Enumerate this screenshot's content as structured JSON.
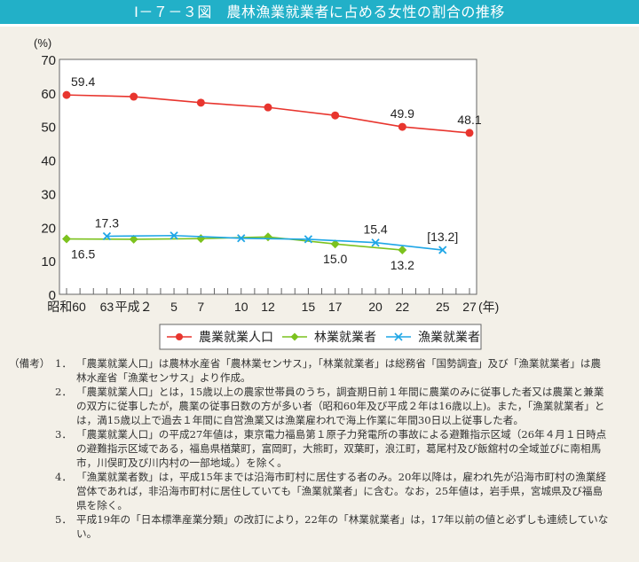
{
  "title": "Ⅰ－７－３図　農林漁業就業者に占める女性の割合の推移",
  "chart_data": {
    "type": "line",
    "title": "Ⅰ－７－３図　農林漁業就業者に占める女性の割合の推移",
    "ylabel": "(%)",
    "xlabel": "(年)",
    "ylim": [
      0,
      70
    ],
    "yticks": [
      0,
      10,
      20,
      30,
      40,
      50,
      60,
      70
    ],
    "xlim": [
      1985,
      2015
    ],
    "xticks": [
      {
        "year": 1985,
        "label": "昭和60"
      },
      {
        "year": 1988,
        "label": "63"
      },
      {
        "year": 1990,
        "label": "平成２"
      },
      {
        "year": 1993,
        "label": "5"
      },
      {
        "year": 1995,
        "label": "7"
      },
      {
        "year": 1998,
        "label": "10"
      },
      {
        "year": 2000,
        "label": "12"
      },
      {
        "year": 2003,
        "label": "15"
      },
      {
        "year": 2005,
        "label": "17"
      },
      {
        "year": 2008,
        "label": "20"
      },
      {
        "year": 2010,
        "label": "22"
      },
      {
        "year": 2013,
        "label": "25"
      },
      {
        "year": 2015,
        "label": "27"
      }
    ],
    "grid": false,
    "legend_placement": "bottom",
    "series": [
      {
        "name": "農業就業人口",
        "color": "#e8352e",
        "marker": "circle",
        "x": [
          1985,
          1990,
          1995,
          2000,
          2005,
          2010,
          2015
        ],
        "values": [
          59.4,
          58.9,
          57.1,
          55.7,
          53.3,
          49.9,
          48.1
        ]
      },
      {
        "name": "林業就業者",
        "color": "#7cc21e",
        "marker": "diamond",
        "x": [
          1985,
          1990,
          1995,
          2000,
          2005,
          2010
        ],
        "values": [
          16.5,
          16.4,
          16.6,
          17.1,
          15.0,
          13.2
        ]
      },
      {
        "name": "漁業就業者",
        "color": "#1ea6e6",
        "marker": "x",
        "x": [
          1988,
          1993,
          1998,
          2003,
          2008,
          2013
        ],
        "values": [
          17.3,
          17.5,
          16.7,
          16.4,
          15.4,
          13.2
        ]
      }
    ],
    "data_labels": [
      {
        "series": 0,
        "x": 1985,
        "text": "59.4"
      },
      {
        "series": 0,
        "x": 2010,
        "text": "49.9"
      },
      {
        "series": 0,
        "x": 2015,
        "text": "48.1"
      },
      {
        "series": 1,
        "x": 1985,
        "text": "16.5"
      },
      {
        "series": 1,
        "x": 2005,
        "text": "15.0"
      },
      {
        "series": 1,
        "x": 2010,
        "text": "13.2"
      },
      {
        "series": 2,
        "x": 1988,
        "text": "17.3"
      },
      {
        "series": 2,
        "x": 2008,
        "text": "15.4"
      },
      {
        "series": 2,
        "x": 2013,
        "text": "[13.2]"
      }
    ]
  },
  "notes": {
    "label": "（備考）",
    "items": [
      {
        "num": "1．",
        "lines": [
          "「農業就業人口」は農林水産省「農林業センサス」，「林業就業者」は総務省「国勢調査」及び「漁業就業者」は農",
          "林水産省「漁業センサス」より作成。"
        ]
      },
      {
        "num": "2．",
        "lines": [
          "「農業就業人口」とは，15歳以上の農家世帯員のうち，調査期日前１年間に農業のみに従事した者又は農業と兼業",
          "の双方に従事したが，農業の従事日数の方が多い者（昭和60年及び平成２年は16歳以上)。また，「漁業就業者」と",
          "は，満15歳以上で過去１年間に自営漁業又は漁業雇われで海上作業に年間30日以上従事した者。"
        ]
      },
      {
        "num": "3．",
        "lines": [
          "「農業就業人口」の平成27年値は，東京電力福島第１原子力発電所の事故による避難指示区域（26年４月１日時点",
          "の避難指示区域である，福島県楢葉町，富岡町，大熊町，双葉町，浪江町，葛尾村及び飯舘村の全域並びに南相馬",
          "市，川俣町及び川内村の一部地域。）を除く。"
        ]
      },
      {
        "num": "4．",
        "lines": [
          "「漁業就業者数」は，平成15年までは沿海市町村に居住する者のみ。20年以降は，雇われ先が沿海市町村の漁業経",
          "営体であれば，非沿海市町村に居住していても「漁業就業者」に含む。なお，25年値は，岩手県，宮城県及び福島",
          "県を除く。"
        ]
      },
      {
        "num": "5．",
        "lines": [
          "平成19年の「日本標準産業分類」の改訂により，22年の「林業就業者」は，17年以前の値と必ずしも連続していな",
          "い。"
        ]
      }
    ]
  }
}
